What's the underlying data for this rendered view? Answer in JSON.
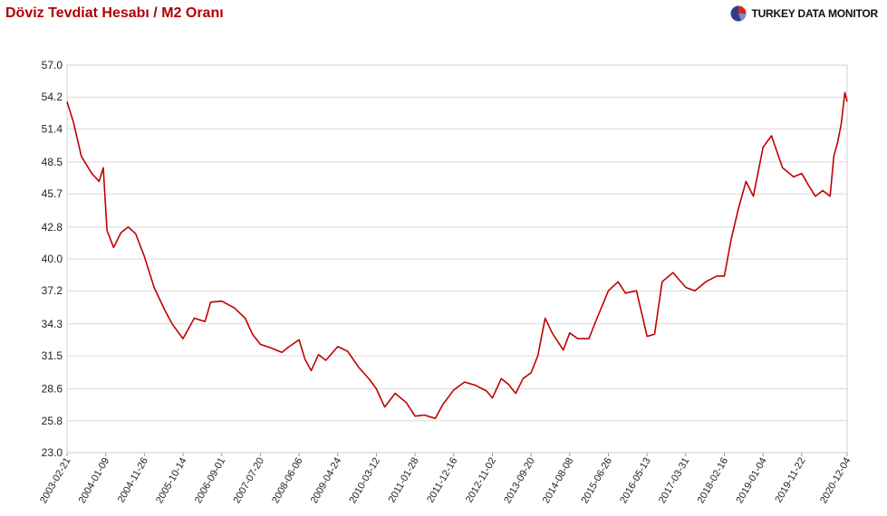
{
  "title": "Döviz Tevdiat Hesabı / M2 Oranı",
  "brand": {
    "name": "TURKEY DATA MONITOR",
    "logo_icon": "pie-globe-icon"
  },
  "colors": {
    "line": "#c00000",
    "grid": "#d9d9d9",
    "title": "#b00000"
  },
  "chart_data": {
    "type": "line",
    "title": "Döviz Tevdiat Hesabı / M2 Oranı",
    "xlabel": "",
    "ylabel": "",
    "ylim": [
      23.0,
      57.0
    ],
    "yticks": [
      "57.0",
      "54.2",
      "51.4",
      "48.5",
      "45.7",
      "42.8",
      "40.0",
      "37.2",
      "34.3",
      "31.5",
      "28.6",
      "25.8",
      "23.0"
    ],
    "xticks": [
      "2003-02-21",
      "2004-01-09",
      "2004-11-26",
      "2005-10-14",
      "2006-09-01",
      "2007-07-20",
      "2008-06-06",
      "2009-04-24",
      "2010-03-12",
      "2011-01-28",
      "2011-12-16",
      "2012-11-02",
      "2013-09-20",
      "2014-08-08",
      "2015-06-26",
      "2016-05-13",
      "2017-03-31",
      "2018-02-16",
      "2019-01-04",
      "2019-11-22",
      "2020-12-04"
    ],
    "grid": true,
    "legend": "none",
    "series": [
      {
        "x": [
          "2003-02-21",
          "2003-04-15",
          "2003-06-20",
          "2003-09-15",
          "2003-11-15",
          "2003-12-20",
          "2004-01-20",
          "2004-03-15",
          "2004-05-15",
          "2004-07-15",
          "2004-09-15",
          "2004-11-26",
          "2005-02-15",
          "2005-05-15",
          "2005-07-15",
          "2005-10-14",
          "2006-01-15",
          "2006-04-15",
          "2006-06-01",
          "2006-09-01",
          "2006-12-15",
          "2007-03-15",
          "2007-05-15",
          "2007-07-20",
          "2007-10-15",
          "2008-01-15",
          "2008-03-15",
          "2008-06-06",
          "2008-07-25",
          "2008-09-15",
          "2008-11-15",
          "2009-01-15",
          "2009-04-24",
          "2009-07-15",
          "2009-10-15",
          "2010-01-15",
          "2010-03-12",
          "2010-05-20",
          "2010-08-15",
          "2010-11-15",
          "2011-01-28",
          "2011-04-15",
          "2011-07-15",
          "2011-09-15",
          "2011-12-16",
          "2012-03-15",
          "2012-06-15",
          "2012-09-15",
          "2012-11-02",
          "2013-01-15",
          "2013-03-15",
          "2013-05-15",
          "2013-07-15",
          "2013-09-20",
          "2013-11-15",
          "2014-01-15",
          "2014-03-15",
          "2014-06-15",
          "2014-08-08",
          "2014-10-15",
          "2015-01-15",
          "2015-03-15",
          "2015-06-26",
          "2015-09-15",
          "2015-11-15",
          "2016-02-15",
          "2016-05-13",
          "2016-07-15",
          "2016-09-15",
          "2016-12-15",
          "2017-03-31",
          "2017-06-15",
          "2017-09-15",
          "2017-12-15",
          "2018-02-16",
          "2018-04-15",
          "2018-06-15",
          "2018-08-15",
          "2018-10-15",
          "2019-01-04",
          "2019-03-15",
          "2019-06-15",
          "2019-09-15",
          "2019-11-22",
          "2020-01-15",
          "2020-03-15",
          "2020-05-15",
          "2020-07-15",
          "2020-08-15",
          "2020-09-15",
          "2020-10-15",
          "2020-11-15",
          "2020-12-04"
        ],
        "values": [
          53.8,
          52.0,
          49.0,
          47.5,
          46.8,
          48.0,
          42.5,
          41.0,
          42.3,
          42.8,
          42.2,
          40.2,
          37.5,
          35.5,
          34.3,
          33.0,
          34.8,
          34.5,
          36.2,
          36.3,
          35.7,
          34.8,
          33.4,
          32.5,
          32.2,
          31.8,
          32.3,
          32.9,
          31.2,
          30.2,
          31.6,
          31.1,
          32.3,
          31.9,
          30.5,
          29.4,
          28.6,
          27.0,
          28.2,
          27.4,
          26.2,
          26.3,
          26.0,
          27.2,
          28.5,
          29.2,
          28.9,
          28.4,
          27.8,
          29.5,
          29.0,
          28.2,
          29.5,
          30.0,
          31.5,
          34.8,
          33.5,
          32.0,
          33.5,
          33.0,
          33.0,
          34.6,
          37.2,
          38.0,
          37.0,
          37.2,
          33.2,
          33.4,
          38.0,
          38.8,
          37.5,
          37.2,
          38.0,
          38.5,
          38.5,
          41.8,
          44.5,
          46.8,
          45.5,
          49.8,
          50.8,
          48.0,
          47.2,
          47.5,
          46.5,
          45.5,
          46.0,
          45.5,
          49.0,
          50.2,
          51.8,
          54.6,
          53.8
        ]
      }
    ]
  }
}
